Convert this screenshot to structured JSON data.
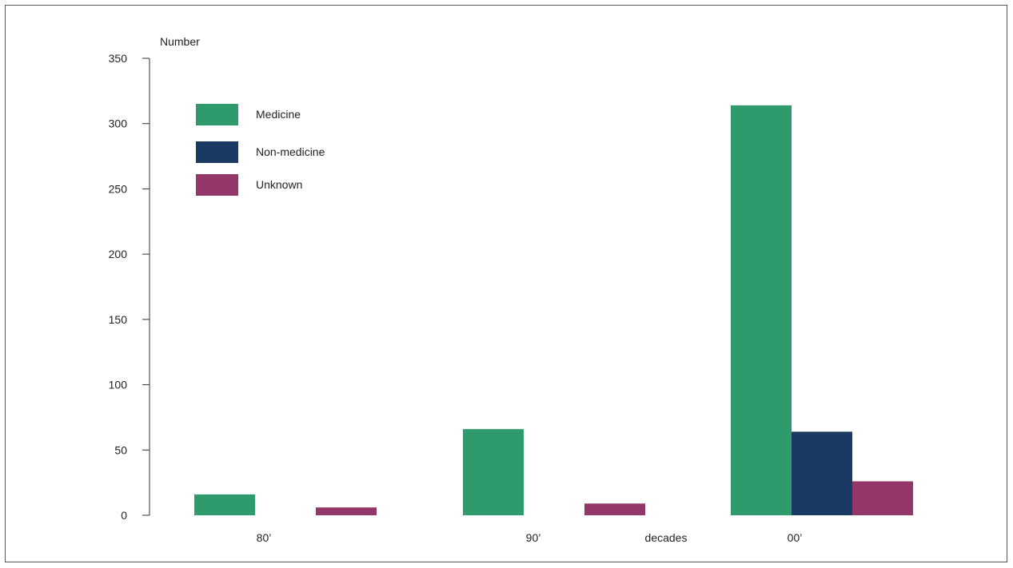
{
  "chart_data": {
    "type": "bar",
    "title": "",
    "ylabel": "Number",
    "xlabel": "decades",
    "ylim": [
      0,
      350
    ],
    "yticks": [
      0,
      50,
      100,
      150,
      200,
      250,
      300,
      350
    ],
    "categories": [
      "80’",
      "90’",
      "00’"
    ],
    "series": [
      {
        "name": "Medicine",
        "color": "#2f9a6c",
        "values": [
          16,
          66,
          314
        ]
      },
      {
        "name": "Non-medicine",
        "color": "#1a3a63",
        "values": [
          0,
          0,
          64
        ]
      },
      {
        "name": "Unknown",
        "color": "#923767",
        "values": [
          6,
          9,
          26
        ]
      }
    ],
    "legend_position": "top-left",
    "grid": false
  }
}
